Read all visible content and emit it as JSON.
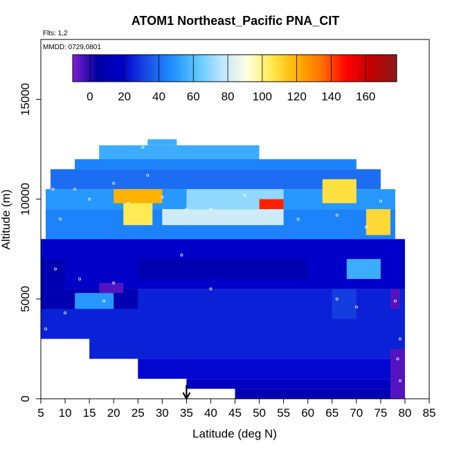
{
  "chart_data": {
    "type": "heatmap",
    "title": "ATOM1 Northeast_Pacific PNA_CIT",
    "flights_label": "Flts: 1,2",
    "date_label": "MMDD: 0729,0801",
    "xlabel": "Latitude (deg N)",
    "ylabel": "Altitude (m)",
    "xlim": [
      5,
      85
    ],
    "ylim": [
      0,
      18000
    ],
    "x_ticks": [
      5,
      10,
      15,
      20,
      25,
      30,
      35,
      40,
      45,
      50,
      55,
      60,
      65,
      70,
      75,
      80,
      85
    ],
    "y_ticks": [
      0,
      5000,
      10000,
      15000
    ],
    "colorbar": {
      "range": [
        -10,
        178
      ],
      "ticks": [
        0,
        20,
        40,
        60,
        80,
        100,
        120,
        140,
        160
      ],
      "colors": [
        "#7f1fd0",
        "#0000a0",
        "#0000cc",
        "#1a4fe6",
        "#1e90ff",
        "#5cc8ff",
        "#bfe6ff",
        "#ffffe0",
        "#ffe94d",
        "#ffb000",
        "#ff7000",
        "#ff0000",
        "#c00000",
        "#8b1a1a"
      ]
    },
    "marker_latitude": 35,
    "grid": false,
    "cells": [
      {
        "lat": [
          5,
          80
        ],
        "alt": [
          3000,
          5500
        ],
        "v": 25
      },
      {
        "lat": [
          15,
          80
        ],
        "alt": [
          2000,
          3000
        ],
        "v": 25
      },
      {
        "lat": [
          25,
          80
        ],
        "alt": [
          1000,
          2000
        ],
        "v": 20
      },
      {
        "lat": [
          35,
          80
        ],
        "alt": [
          500,
          1000
        ],
        "v": 15
      },
      {
        "lat": [
          45,
          80
        ],
        "alt": [
          0,
          500
        ],
        "v": 12
      },
      {
        "lat": [
          5,
          80
        ],
        "alt": [
          5500,
          8000
        ],
        "v": 18
      },
      {
        "lat": [
          6,
          78
        ],
        "alt": [
          8000,
          9500
        ],
        "v": 45
      },
      {
        "lat": [
          6,
          78
        ],
        "alt": [
          9500,
          10500
        ],
        "v": 50
      },
      {
        "lat": [
          7,
          75
        ],
        "alt": [
          10500,
          11500
        ],
        "v": 40
      },
      {
        "lat": [
          12,
          70
        ],
        "alt": [
          11500,
          12000
        ],
        "v": 45
      },
      {
        "lat": [
          17,
          50
        ],
        "alt": [
          12000,
          12700
        ],
        "v": 55
      },
      {
        "lat": [
          27,
          33
        ],
        "alt": [
          12700,
          13000
        ],
        "v": 55
      },
      {
        "lat": [
          20,
          30
        ],
        "alt": [
          9800,
          10500
        ],
        "v": 120
      },
      {
        "lat": [
          22,
          28
        ],
        "alt": [
          8700,
          9800
        ],
        "v": 105
      },
      {
        "lat": [
          30,
          55
        ],
        "alt": [
          8700,
          9500
        ],
        "v": 80
      },
      {
        "lat": [
          35,
          55
        ],
        "alt": [
          9500,
          10500
        ],
        "v": 70
      },
      {
        "lat": [
          50,
          55
        ],
        "alt": [
          9500,
          10000
        ],
        "v": 145
      },
      {
        "lat": [
          63,
          70
        ],
        "alt": [
          9800,
          11000
        ],
        "v": 108
      },
      {
        "lat": [
          72,
          77
        ],
        "alt": [
          8200,
          9500
        ],
        "v": 110
      },
      {
        "lat": [
          5,
          10
        ],
        "alt": [
          5500,
          7000
        ],
        "v": 10
      },
      {
        "lat": [
          25,
          60
        ],
        "alt": [
          6000,
          7000
        ],
        "v": 10
      },
      {
        "lat": [
          5,
          25
        ],
        "alt": [
          4500,
          5500
        ],
        "v": 10
      },
      {
        "lat": [
          12,
          20
        ],
        "alt": [
          4500,
          5300
        ],
        "v": 50
      },
      {
        "lat": [
          17,
          22
        ],
        "alt": [
          5300,
          5800
        ],
        "v": -5
      },
      {
        "lat": [
          65,
          70
        ],
        "alt": [
          4000,
          5500
        ],
        "v": 30
      },
      {
        "lat": [
          68,
          75
        ],
        "alt": [
          6000,
          7000
        ],
        "v": 55
      },
      {
        "lat": [
          77,
          80
        ],
        "alt": [
          0,
          2500
        ],
        "v": -5
      },
      {
        "lat": [
          77,
          79
        ],
        "alt": [
          4500,
          5500
        ],
        "v": -5
      }
    ],
    "points": [
      {
        "lat": 7.5,
        "alt": 10500
      },
      {
        "lat": 9,
        "alt": 9000
      },
      {
        "lat": 12,
        "alt": 10500
      },
      {
        "lat": 15,
        "alt": 10000
      },
      {
        "lat": 20,
        "alt": 10800
      },
      {
        "lat": 23,
        "alt": 9800
      },
      {
        "lat": 26,
        "alt": 12600
      },
      {
        "lat": 30,
        "alt": 10100
      },
      {
        "lat": 35,
        "alt": 9500
      },
      {
        "lat": 40,
        "alt": 9500
      },
      {
        "lat": 47,
        "alt": 10200
      },
      {
        "lat": 58,
        "alt": 9000
      },
      {
        "lat": 66,
        "alt": 9200
      },
      {
        "lat": 72,
        "alt": 8600
      },
      {
        "lat": 75,
        "alt": 9900
      },
      {
        "lat": 8,
        "alt": 6500
      },
      {
        "lat": 13,
        "alt": 6000
      },
      {
        "lat": 20,
        "alt": 5800
      },
      {
        "lat": 34,
        "alt": 7200
      },
      {
        "lat": 40,
        "alt": 5500
      },
      {
        "lat": 66,
        "alt": 5000
      },
      {
        "lat": 70,
        "alt": 4600
      },
      {
        "lat": 78,
        "alt": 4900
      },
      {
        "lat": 79,
        "alt": 3000
      },
      {
        "lat": 78.5,
        "alt": 2000
      },
      {
        "lat": 79,
        "alt": 900
      },
      {
        "lat": 6,
        "alt": 3500
      },
      {
        "lat": 10,
        "alt": 4300
      },
      {
        "lat": 18,
        "alt": 4900
      },
      {
        "lat": 27,
        "alt": 11200
      }
    ]
  }
}
